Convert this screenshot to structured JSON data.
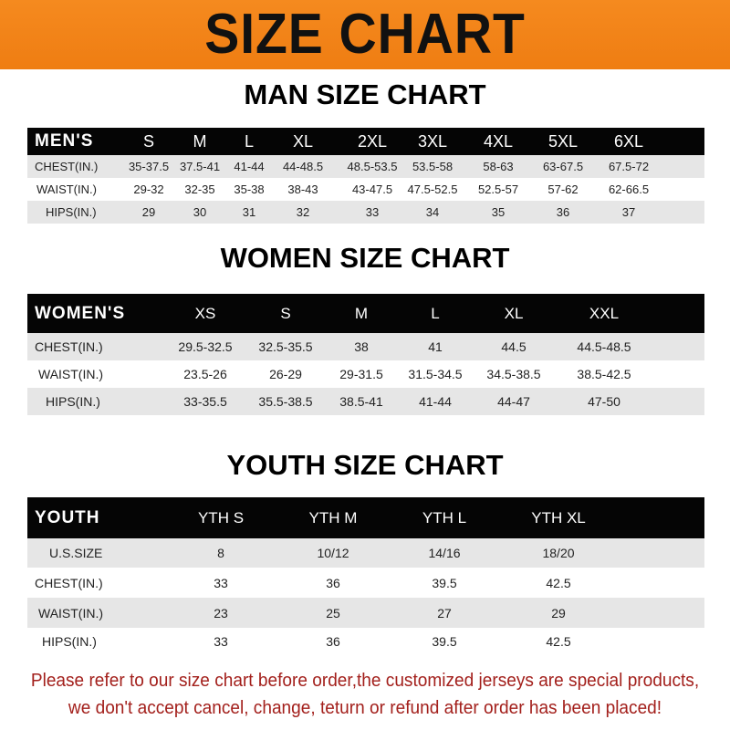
{
  "banner_title": "SIZE CHART",
  "men": {
    "title": "MAN SIZE CHART",
    "header_label": "MEN'S",
    "sizes": [
      "S",
      "M",
      "L",
      "XL",
      "2XL",
      "3XL",
      "4XL",
      "5XL",
      "6XL"
    ],
    "rows": [
      {
        "label": "CHEST(IN.)",
        "values": [
          "35-37.5",
          "37.5-41",
          "41-44",
          "44-48.5",
          "48.5-53.5",
          "53.5-58",
          "58-63",
          "63-67.5",
          "67.5-72"
        ]
      },
      {
        "label": "WAIST(IN.)",
        "values": [
          "29-32",
          "32-35",
          "35-38",
          "38-43",
          "43-47.5",
          "47.5-52.5",
          "52.5-57",
          "57-62",
          "62-66.5"
        ]
      },
      {
        "label": "HIPS(IN.)",
        "values": [
          "29",
          "30",
          "31",
          "32",
          "33",
          "34",
          "35",
          "36",
          "37"
        ]
      }
    ]
  },
  "women": {
    "title": "WOMEN SIZE CHART",
    "header_label": "WOMEN'S",
    "sizes": [
      "XS",
      "S",
      "M",
      "L",
      "XL",
      "XXL"
    ],
    "rows": [
      {
        "label": "CHEST(IN.)",
        "values": [
          "29.5-32.5",
          "32.5-35.5",
          "38",
          "41",
          "44.5",
          "44.5-48.5"
        ]
      },
      {
        "label": "WAIST(IN.)",
        "values": [
          "23.5-26",
          "26-29",
          "29-31.5",
          "31.5-34.5",
          "34.5-38.5",
          "38.5-42.5"
        ]
      },
      {
        "label": "HIPS(IN.)",
        "values": [
          "33-35.5",
          "35.5-38.5",
          "38.5-41",
          "41-44",
          "44-47",
          "47-50"
        ]
      }
    ]
  },
  "youth": {
    "title": "YOUTH SIZE CHART",
    "header_label": "YOUTH",
    "sizes": [
      "YTH S",
      "YTH M",
      "YTH L",
      "YTH XL"
    ],
    "rows": [
      {
        "label": "U.S.SIZE",
        "values": [
          "8",
          "10/12",
          "14/16",
          "18/20"
        ]
      },
      {
        "label": "CHEST(IN.)",
        "values": [
          "33",
          "36",
          "39.5",
          "42.5"
        ]
      },
      {
        "label": "WAIST(IN.)",
        "values": [
          "23",
          "25",
          "27",
          "29"
        ]
      },
      {
        "label": "HIPS(IN.)",
        "values": [
          "33",
          "36",
          "39.5",
          "42.5"
        ]
      }
    ]
  },
  "footer": {
    "line1": "Please refer to our size chart before order,the customized jerseys are special products,",
    "line2": "we don't accept cancel, change, teturn or refund after order has been placed!"
  }
}
